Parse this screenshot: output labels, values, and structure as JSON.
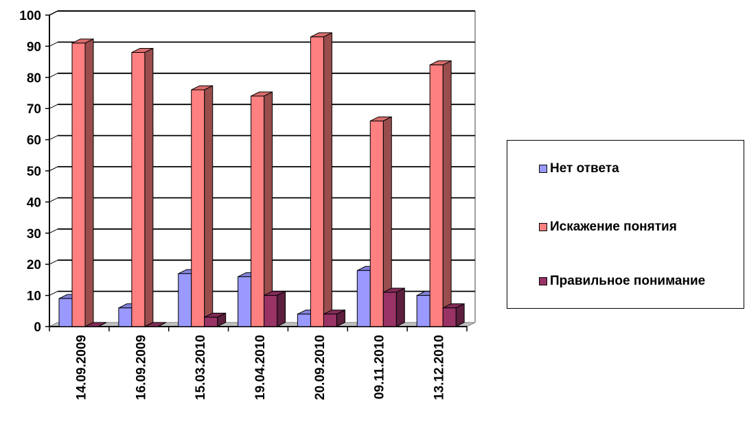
{
  "chart_data": {
    "type": "bar",
    "categories": [
      "14.09.2009",
      "16.09.2009",
      "15.03.2010",
      "19.04.2010",
      "20.09.2010",
      "09.11.2010",
      "13.12.2010"
    ],
    "series": [
      {
        "name": "Нет ответа",
        "values": [
          9,
          6,
          17,
          16,
          4,
          18,
          10
        ],
        "color": "#9999ff"
      },
      {
        "name": "Искажение понятия",
        "values": [
          91,
          88,
          76,
          74,
          93,
          66,
          84
        ],
        "color": "#ff8080"
      },
      {
        "name": "Правильное понимание",
        "values": [
          0,
          0,
          3,
          10,
          4,
          11,
          6
        ],
        "color": "#993366"
      }
    ],
    "yticks": [
      "0",
      "10",
      "20",
      "30",
      "40",
      "50",
      "60",
      "70",
      "80",
      "90",
      "100"
    ],
    "ylim": [
      0,
      100
    ],
    "grid": true,
    "legend_position": "right",
    "style": "3d-clustered-column"
  }
}
